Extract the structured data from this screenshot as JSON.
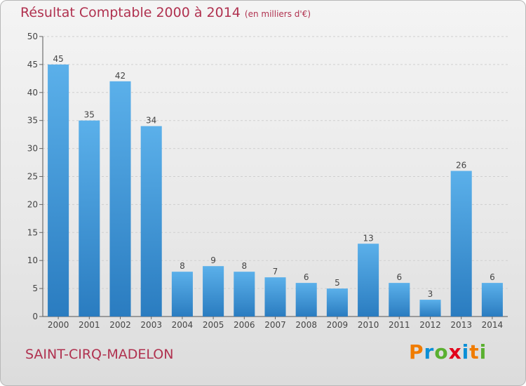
{
  "header": {
    "title": "Résultat Comptable 2000 à 2014",
    "subtitle": "(en milliers d'€)"
  },
  "footer": {
    "commune": "SAINT-CIRQ-MADELON",
    "brand": "Proxiti",
    "brand_letters": [
      "P",
      "r",
      "o",
      "x",
      "i",
      "t",
      "i"
    ],
    "brand_colors": [
      "#f07c00",
      "#0a8fd6",
      "#5ab030",
      "#e2001a",
      "#0a8fd6",
      "#f07c00",
      "#5ab030"
    ]
  },
  "chart_data": {
    "type": "bar",
    "title": "Résultat Comptable 2000 à 2014",
    "subtitle": "(en milliers d'€)",
    "categories": [
      "2000",
      "2001",
      "2002",
      "2003",
      "2004",
      "2005",
      "2006",
      "2007",
      "2008",
      "2009",
      "2010",
      "2011",
      "2012",
      "2013",
      "2014"
    ],
    "values": [
      45,
      35,
      42,
      34,
      8,
      9,
      8,
      7,
      6,
      5,
      13,
      6,
      3,
      26,
      6
    ],
    "ylim": [
      0,
      50
    ],
    "yticks": [
      0,
      5,
      10,
      15,
      20,
      25,
      30,
      35,
      40,
      45,
      50
    ],
    "xlabel": "",
    "ylabel": "",
    "grid": true,
    "bar_color": "#4fa3e0",
    "bar_color_dark": "#2b7fc2"
  }
}
